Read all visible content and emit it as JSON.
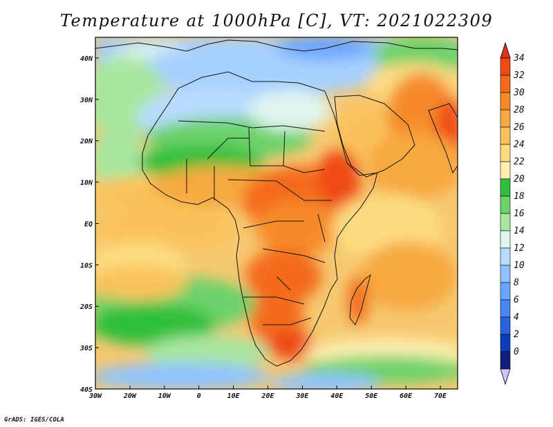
{
  "title": "Temperature at 1000hPa [C], VT: 2021022309",
  "credit": "GrADS: IGES/COLA",
  "map": {
    "lon_range": [
      -30,
      75
    ],
    "lat_range": [
      -40,
      45
    ],
    "lon_ticks": [
      "30W",
      "20W",
      "10W",
      "0",
      "10E",
      "20E",
      "30E",
      "40E",
      "50E",
      "60E",
      "70E"
    ],
    "lat_ticks": [
      "40N",
      "30N",
      "20N",
      "10N",
      "EQ",
      "10S",
      "20S",
      "30S",
      "40S"
    ],
    "field": "temperature",
    "units": "C"
  },
  "colorbar": {
    "labels": [
      "34",
      "32",
      "30",
      "28",
      "26",
      "24",
      "22",
      "20",
      "18",
      "16",
      "14",
      "12",
      "10",
      "8",
      "6",
      "4",
      "2",
      "0"
    ],
    "colors": [
      "#f04a14",
      "#f46a1c",
      "#f68a2a",
      "#f8a840",
      "#fac25a",
      "#fcdc80",
      "#fdf0b0",
      "#2fbf3a",
      "#6cd26a",
      "#a8e6a0",
      "#dff5ee",
      "#b8dcff",
      "#8fc3ff",
      "#6aa6ff",
      "#4a86f2",
      "#2a62dd",
      "#0f3cbd",
      "#111f80"
    ],
    "top_arrow_color": "#e0341a",
    "bottom_arrow_color": "#c8c8ff"
  }
}
